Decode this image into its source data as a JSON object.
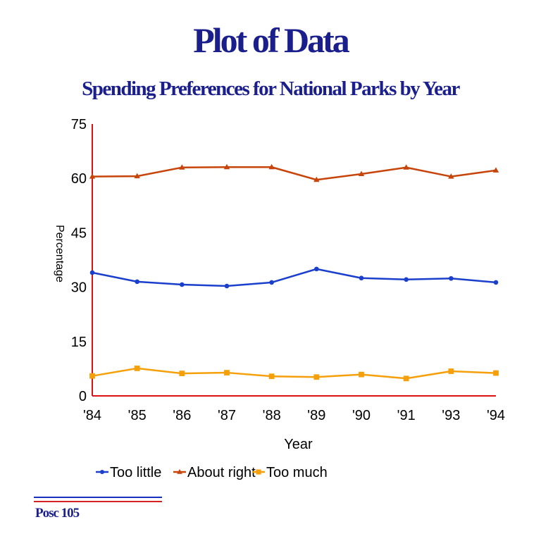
{
  "page": {
    "title": "Plot of Data",
    "footer": "Posc 105",
    "footer_line_colors": [
      "#1a2fbf",
      "#d42020"
    ]
  },
  "chart_data": {
    "type": "line",
    "title": "Spending Preferences for National Parks by Year",
    "xlabel": "Year",
    "ylabel": "Percentage",
    "categories": [
      "'84",
      "'85",
      "'86",
      "'87",
      "'88",
      "'89",
      "'90",
      "'91",
      "'93",
      "'94"
    ],
    "yticks": [
      0,
      15,
      30,
      45,
      60,
      75
    ],
    "ylim": [
      0,
      75
    ],
    "axis_color": "#dd1111",
    "legend_position": "bottom",
    "series": [
      {
        "name": "Too little",
        "color": "#1a3fcc",
        "marker": "circle",
        "values": [
          34,
          31.5,
          30.7,
          30.3,
          31.3,
          35,
          32.5,
          32.1,
          32.4,
          31.3
        ]
      },
      {
        "name": "About right",
        "color": "#c7440a",
        "marker": "triangle",
        "values": [
          60.5,
          60.6,
          63,
          63.1,
          63.1,
          59.6,
          61.2,
          63,
          60.5,
          62.2
        ]
      },
      {
        "name": "Too much",
        "color": "#f5a00a",
        "marker": "square",
        "values": [
          5.5,
          7.6,
          6.2,
          6.4,
          5.4,
          5.2,
          5.9,
          4.8,
          6.8,
          6.3
        ]
      }
    ]
  }
}
